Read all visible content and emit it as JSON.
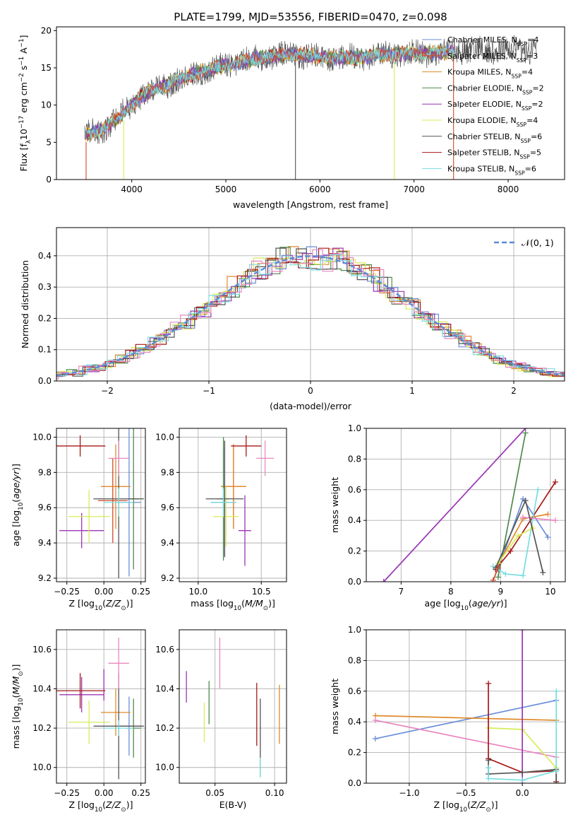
{
  "title": "PLATE=1799, MJD=53556, FIBERID=0470, z=0.098",
  "colors": {
    "Chabrier MILES": "#6a8fd8",
    "Salpeter MILES": "#d04a28",
    "Kroupa MILES": "#e08a2c",
    "Chabrier ELODIE": "#4f8a4f",
    "Salpeter ELODIE": "#9b34b4",
    "Kroupa ELODIE": "#d8ec5a",
    "Chabrier STELIB": "#555555",
    "Salpeter STELIB": "#a81818",
    "Kroupa STELIB": "#78dde0",
    "Extra": "#e888c0"
  },
  "chart_data": [
    {
      "id": "spectrum",
      "type": "line",
      "xlabel": "wavelength [Angstrom, rest frame]",
      "ylabel": "Flux [fλ10⁻¹⁷ erg cm⁻² s⁻¹ A⁻¹]",
      "xlim": [
        3200,
        8600
      ],
      "ylim": [
        0,
        20.5
      ],
      "xticks": [
        4000,
        5000,
        6000,
        7000,
        8000
      ],
      "yticks": [
        0,
        5,
        10,
        15,
        20
      ],
      "grid": false,
      "legend_position": "right",
      "legend": [
        "Chabrier MILES, N_SSP=4",
        "Salpeter MILES, N_SSP=3",
        "Kroupa MILES, N_SSP=4",
        "Chabrier ELODIE, N_SSP=2",
        "Salpeter ELODIE, N_SSP=2",
        "Kroupa ELODIE, N_SSP=4",
        "Chabrier STELIB, N_SSP=6",
        "Salpeter STELIB, N_SSP=5",
        "Kroupa STELIB, N_SSP=6"
      ],
      "continuum_x": [
        3500,
        3700,
        3850,
        4000,
        4100,
        4300,
        4500,
        4700,
        4900,
        5100,
        5300,
        5500,
        5700,
        5900,
        6100,
        6300,
        6500,
        6700,
        6900,
        7100,
        7300,
        7420
      ],
      "continuum_y": [
        6.0,
        6.8,
        8.2,
        10.0,
        11.2,
        12.4,
        13.5,
        14.4,
        15.0,
        15.6,
        16.2,
        16.6,
        16.8,
        16.6,
        16.4,
        16.3,
        16.5,
        16.8,
        16.9,
        16.9,
        17.0,
        17.2
      ],
      "data_x_end": 8300,
      "spikes_down": [
        3515,
        3915,
        5740,
        6790,
        7420
      ],
      "spike_colors": [
        "#d04a28",
        "#d8ec5a",
        "#555555",
        "#d8ec5a",
        "#d04a28"
      ]
    },
    {
      "id": "residuals",
      "type": "histogram",
      "xlabel": "(data-model)/error",
      "ylabel": "Normed distribution",
      "xlim": [
        -2.5,
        2.5
      ],
      "ylim": [
        0,
        0.49
      ],
      "xticks": [
        -2,
        -1,
        0,
        1,
        2
      ],
      "yticks": [
        0.0,
        0.1,
        0.2,
        0.3,
        0.4
      ],
      "grid": true,
      "legend": [
        "𝒩(0, 1)"
      ],
      "legend_position": "top-right",
      "bin_width": 0.1
    },
    {
      "id": "age_vs_Z",
      "type": "errorbar",
      "xlabel": "Z [log₁₀(Z/Z⊙)]",
      "ylabel": "age  [log₁₀(age/yr)]",
      "xlim": [
        -0.32,
        0.28
      ],
      "ylim": [
        9.18,
        10.05
      ],
      "xticks": [
        -0.25,
        0.0,
        0.25
      ],
      "yticks": [
        9.2,
        9.4,
        9.6,
        9.8,
        10.0
      ],
      "grid": true,
      "points": [
        {
          "series": "Chabrier MILES",
          "x": 0.17,
          "y": 9.63,
          "xerr": 0.08,
          "yerr": 0.42
        },
        {
          "series": "Salpeter MILES",
          "x": 0.06,
          "y": 9.64,
          "xerr": 0.1,
          "yerr": 0.24
        },
        {
          "series": "Kroupa MILES",
          "x": 0.08,
          "y": 9.72,
          "xerr": 0.1,
          "yerr": 0.24
        },
        {
          "series": "Chabrier ELODIE",
          "x": 0.2,
          "y": 9.65,
          "xerr": 0.04,
          "yerr": 0.4
        },
        {
          "series": "Salpeter ELODIE",
          "x": -0.15,
          "y": 9.47,
          "xerr": 0.15,
          "yerr": 0.1
        },
        {
          "series": "Kroupa ELODIE",
          "x": -0.1,
          "y": 9.55,
          "xerr": 0.14,
          "yerr": 0.15
        },
        {
          "series": "Chabrier STELIB",
          "x": 0.1,
          "y": 9.65,
          "xerr": 0.17,
          "yerr": 0.45
        },
        {
          "series": "Salpeter STELIB",
          "x": -0.16,
          "y": 9.95,
          "xerr": 0.17,
          "yerr": 0.06
        },
        {
          "series": "Kroupa STELIB",
          "x": 0.1,
          "y": 9.63,
          "xerr": 0.1,
          "yerr": 0.08
        },
        {
          "series": "Extra",
          "x": 0.1,
          "y": 9.88,
          "xerr": 0.07,
          "yerr": 0.1
        }
      ]
    },
    {
      "id": "age_vs_mass",
      "type": "errorbar",
      "xlabel": "mass [log₁₀(M/M⊙)]",
      "ylabel": "",
      "xlim": [
        9.85,
        10.7
      ],
      "ylim": [
        9.18,
        10.05
      ],
      "xticks": [
        10.0,
        10.5
      ],
      "yticks": [
        9.2,
        9.4,
        9.6,
        9.8,
        10.0
      ],
      "grid": true,
      "points": [
        {
          "series": "Chabrier MILES",
          "x": 10.2,
          "y": 9.63,
          "xerr": 0.1,
          "yerr": 0.3
        },
        {
          "series": "Salpeter MILES",
          "x": 10.28,
          "y": 9.72,
          "xerr": 0.1,
          "yerr": 0.24
        },
        {
          "series": "Kroupa MILES",
          "x": 10.28,
          "y": 9.72,
          "xerr": 0.1,
          "yerr": 0.24
        },
        {
          "series": "Chabrier ELODIE",
          "x": 10.2,
          "y": 9.65,
          "xerr": 0.05,
          "yerr": 0.35
        },
        {
          "series": "Salpeter ELODIE",
          "x": 10.37,
          "y": 9.47,
          "xerr": 0.05,
          "yerr": 0.2
        },
        {
          "series": "Kroupa ELODIE",
          "x": 10.22,
          "y": 9.55,
          "xerr": 0.1,
          "yerr": 0.17
        },
        {
          "series": "Chabrier STELIB",
          "x": 10.21,
          "y": 9.65,
          "xerr": 0.15,
          "yerr": 0.33
        },
        {
          "series": "Salpeter STELIB",
          "x": 10.38,
          "y": 9.95,
          "xerr": 0.12,
          "yerr": 0.06
        },
        {
          "series": "Kroupa STELIB",
          "x": 10.2,
          "y": 9.63,
          "xerr": 0.1,
          "yerr": 0.08
        },
        {
          "series": "Extra",
          "x": 10.53,
          "y": 9.88,
          "xerr": 0.07,
          "yerr": 0.1
        }
      ]
    },
    {
      "id": "weight_vs_age",
      "type": "line",
      "xlabel": "age  [log₁₀(age/yr)]",
      "ylabel": "mass weight",
      "xlim": [
        6.3,
        10.3
      ],
      "ylim": [
        0.0,
        1.0
      ],
      "xticks": [
        7,
        8,
        9,
        10
      ],
      "yticks": [
        0.0,
        0.2,
        0.4,
        0.6,
        0.8,
        1.0
      ],
      "grid": true,
      "series": [
        {
          "name": "Salpeter ELODIE",
          "x": [
            6.65,
            9.5
          ],
          "y": [
            0.0,
            1.0
          ]
        },
        {
          "name": "Chabrier ELODIE",
          "x": [
            8.95,
            9.5
          ],
          "y": [
            0.03,
            0.97
          ]
        },
        {
          "name": "Chabrier MILES",
          "x": [
            8.95,
            9.45,
            9.95
          ],
          "y": [
            0.08,
            0.54,
            0.29
          ]
        },
        {
          "name": "Kroupa MILES",
          "x": [
            8.9,
            9.45,
            9.95
          ],
          "y": [
            0.08,
            0.41,
            0.44
          ]
        },
        {
          "name": "Salpeter STELIB",
          "x": [
            8.9,
            9.2,
            10.1
          ],
          "y": [
            0.08,
            0.2,
            0.65
          ]
        },
        {
          "name": "Kroupa STELIB",
          "x": [
            8.85,
            9.1,
            9.45,
            9.75
          ],
          "y": [
            0.1,
            0.05,
            0.04,
            0.6
          ]
        },
        {
          "name": "Extra",
          "x": [
            9.45,
            10.1
          ],
          "y": [
            0.42,
            0.4
          ]
        },
        {
          "name": "Kroupa ELODIE",
          "x": [
            8.95,
            9.35,
            9.65
          ],
          "y": [
            0.12,
            0.3,
            0.35
          ]
        },
        {
          "name": "Chabrier STELIB",
          "x": [
            8.9,
            9.5,
            9.85
          ],
          "y": [
            0.09,
            0.53,
            0.06
          ]
        },
        {
          "name": "Salpeter MILES",
          "x": [
            8.85,
            8.95
          ],
          "y": [
            0.01,
            0.09
          ]
        }
      ]
    },
    {
      "id": "mass_vs_Z",
      "type": "errorbar",
      "xlabel": "Z [log₁₀(Z/Z⊙)]",
      "ylabel": "mass [log₁₀(M/M⊙)]",
      "xlim": [
        -0.32,
        0.28
      ],
      "ylim": [
        9.92,
        10.7
      ],
      "xticks": [
        -0.25,
        0.0,
        0.25
      ],
      "yticks": [
        10.0,
        10.2,
        10.4,
        10.6
      ],
      "grid": true,
      "points": [
        {
          "series": "Chabrier MILES",
          "x": 0.17,
          "y": 10.21,
          "xerr": 0.08,
          "yerr": 0.15
        },
        {
          "series": "Kroupa MILES",
          "x": 0.08,
          "y": 10.28,
          "xerr": 0.1,
          "yerr": 0.12
        },
        {
          "series": "Chabrier ELODIE",
          "x": 0.2,
          "y": 10.2,
          "xerr": 0.05,
          "yerr": 0.15
        },
        {
          "series": "Salpeter ELODIE",
          "x": -0.15,
          "y": 10.37,
          "xerr": 0.15,
          "yerr": 0.09
        },
        {
          "series": "Salpeter ELODIE",
          "x": 0.0,
          "y": 10.42,
          "xerr": 0.0,
          "yerr": 0.08
        },
        {
          "series": "Kroupa ELODIE",
          "x": -0.1,
          "y": 10.23,
          "xerr": 0.14,
          "yerr": 0.11
        },
        {
          "series": "Chabrier STELIB",
          "x": 0.1,
          "y": 10.21,
          "xerr": 0.17,
          "yerr": 0.27
        },
        {
          "series": "Salpeter STELIB",
          "x": -0.16,
          "y": 10.39,
          "xerr": 0.17,
          "yerr": 0.09
        },
        {
          "series": "Kroupa STELIB",
          "x": 0.1,
          "y": 10.2,
          "xerr": 0.1,
          "yerr": 0.04
        },
        {
          "series": "Extra",
          "x": 0.1,
          "y": 10.53,
          "xerr": 0.07,
          "yerr": 0.13
        }
      ]
    },
    {
      "id": "mass_vs_EBV",
      "type": "errorbar",
      "xlabel": "E(B-V)",
      "ylabel": "",
      "xlim": [
        0.02,
        0.11
      ],
      "ylim": [
        9.92,
        10.7
      ],
      "xticks": [
        0.05,
        0.1
      ],
      "yticks": [
        10.0,
        10.2,
        10.4,
        10.6
      ],
      "grid": true,
      "points": [
        {
          "series": "Salpeter ELODIE",
          "x": 0.026,
          "y": 10.41,
          "xerr": 0.0,
          "yerr": 0.08
        },
        {
          "series": "Kroupa ELODIE",
          "x": 0.041,
          "y": 10.23,
          "xerr": 0.0,
          "yerr": 0.1
        },
        {
          "series": "Chabrier ELODIE",
          "x": 0.045,
          "y": 10.33,
          "xerr": 0.0,
          "yerr": 0.11
        },
        {
          "series": "Extra",
          "x": 0.054,
          "y": 10.53,
          "xerr": 0.0,
          "yerr": 0.13
        },
        {
          "series": "Salpeter STELIB",
          "x": 0.085,
          "y": 10.27,
          "xerr": 0.0,
          "yerr": 0.16
        },
        {
          "series": "Chabrier STELIB",
          "x": 0.088,
          "y": 10.15,
          "xerr": 0.0,
          "yerr": 0.2
        },
        {
          "series": "Kroupa STELIB",
          "x": 0.088,
          "y": 10.0,
          "xerr": 0.0,
          "yerr": 0.05
        },
        {
          "series": "Kroupa MILES",
          "x": 0.104,
          "y": 10.27,
          "xerr": 0.0,
          "yerr": 0.15
        }
      ]
    },
    {
      "id": "weight_vs_Z",
      "type": "line",
      "xlabel": "Z [log₁₀(Z/Z⊙)]",
      "ylabel": "mass weight",
      "xlim": [
        -1.38,
        0.38
      ],
      "ylim": [
        0.0,
        1.0
      ],
      "xticks": [
        -1.0,
        -0.5,
        0.0
      ],
      "xtick_labels": [
        "−1.0",
        "−0.5",
        "0.0"
      ],
      "yticks": [
        0.0,
        0.2,
        0.4,
        0.6,
        0.8,
        1.0
      ],
      "grid": true,
      "series": [
        {
          "name": "Chabrier MILES",
          "x": [
            -1.3,
            0.3
          ],
          "y": [
            0.29,
            0.54
          ]
        },
        {
          "name": "Kroupa MILES",
          "x": [
            -1.3,
            0.3
          ],
          "y": [
            0.44,
            0.41
          ]
        },
        {
          "name": "Extra",
          "x": [
            -1.3,
            0.3
          ],
          "y": [
            0.41,
            0.17
          ]
        },
        {
          "name": "Kroupa ELODIE",
          "x": [
            -0.3,
            0.0,
            0.3
          ],
          "y": [
            0.36,
            0.35,
            0.1
          ]
        },
        {
          "name": "Salpeter ELODIE",
          "x": [
            0.0,
            0.0
          ],
          "y": [
            1.0,
            0.0
          ]
        },
        {
          "name": "Salpeter STELIB",
          "x": [
            -0.3,
            -0.3,
            0.0,
            0.3,
            0.3
          ],
          "y": [
            0.65,
            0.16,
            0.07,
            0.08,
            0.01
          ]
        },
        {
          "name": "Chabrier STELIB",
          "x": [
            -0.3,
            -0.3,
            0.0,
            0.3,
            0.3
          ],
          "y": [
            0.15,
            0.06,
            0.07,
            0.09,
            0.0
          ]
        },
        {
          "name": "Kroupa STELIB",
          "x": [
            -0.3,
            -0.3,
            0.0,
            0.3,
            0.3
          ],
          "y": [
            0.1,
            0.03,
            0.02,
            0.08,
            0.6
          ]
        }
      ]
    }
  ]
}
